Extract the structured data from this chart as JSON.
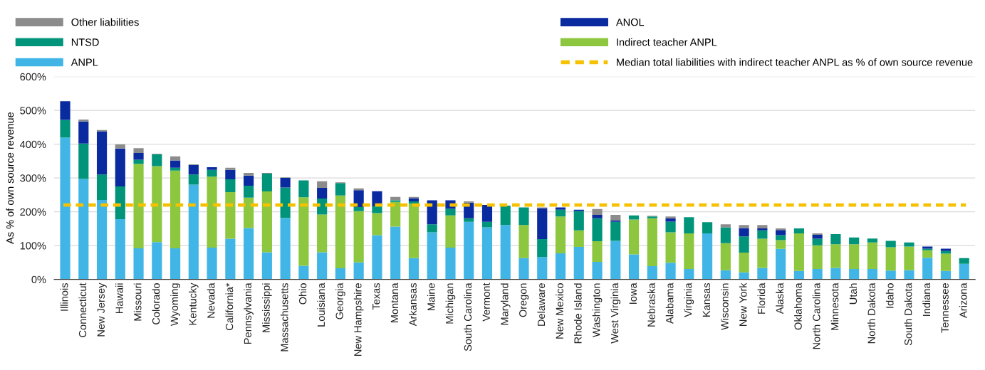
{
  "chart_data": {
    "type": "bar",
    "stacked": true,
    "ylabel": "As % of own source revenue",
    "categories": [
      "Illinois",
      "Connecticut",
      "New Jersey",
      "Hawaii",
      "Missouri",
      "Colorado",
      "Wyoming",
      "Kentucky",
      "Nevada",
      "California*",
      "Pennsylvania",
      "Mississippi",
      "Massachusetts",
      "Ohio",
      "Louisiana",
      "Georgia",
      "New Hampshire",
      "Texas",
      "Montana",
      "Arkansas",
      "Maine",
      "Michigan",
      "South Carolina",
      "Vermont",
      "Maryland",
      "Oregon",
      "Delaware",
      "New Mexico",
      "Rhode Island",
      "Washington",
      "West Virginia",
      "Iowa",
      "Nebraska",
      "Alabama",
      "Virginia",
      "Kansas",
      "Wisconsin",
      "New York",
      "Florida",
      "Alaska",
      "Oklahoma",
      "North Carolina",
      "Minnesota",
      "Utah",
      "North Dakota",
      "Idaho",
      "South Dakota",
      "Indiana",
      "Tennessee",
      "Arizona"
    ],
    "series": [
      {
        "name": "ANPL",
        "color": "#41b6e6",
        "values": [
          420,
          297,
          235,
          178,
          92,
          110,
          92,
          280,
          94,
          120,
          152,
          80,
          182,
          40,
          80,
          33,
          50,
          131,
          156,
          63,
          139,
          94,
          170,
          154,
          161,
          63,
          66,
          77,
          96,
          52,
          114,
          74,
          39,
          49,
          31,
          136,
          27,
          21,
          34,
          90,
          25,
          31,
          34,
          31,
          31,
          26,
          27,
          64,
          25,
          46
        ]
      },
      {
        "name": "Indirect teacher ANPL",
        "color": "#8dc63f",
        "values": [
          0,
          0,
          0,
          0,
          250,
          225,
          230,
          0,
          210,
          138,
          90,
          180,
          0,
          203,
          112,
          215,
          152,
          65,
          73,
          161,
          0,
          95,
          0,
          0,
          0,
          98,
          0,
          109,
          49,
          61,
          0,
          103,
          142,
          90,
          105,
          0,
          80,
          58,
          86,
          26,
          111,
          70,
          70,
          73,
          78,
          69,
          70,
          22,
          51,
          0
        ]
      },
      {
        "name": "NTSD",
        "color": "#00947a",
        "values": [
          52,
          105,
          75,
          97,
          12,
          35,
          8,
          30,
          20,
          38,
          35,
          53,
          90,
          50,
          47,
          37,
          12,
          20,
          5,
          7,
          24,
          20,
          11,
          16,
          57,
          52,
          53,
          20,
          57,
          68,
          56,
          12,
          5,
          32,
          48,
          33,
          47,
          48,
          25,
          15,
          15,
          19,
          30,
          20,
          12,
          19,
          12,
          5,
          8,
          17
        ]
      },
      {
        "name": "ANOL",
        "color": "#0a2aa0",
        "values": [
          55,
          65,
          128,
          112,
          20,
          0,
          22,
          28,
          8,
          28,
          30,
          0,
          28,
          0,
          32,
          0,
          50,
          45,
          0,
          9,
          71,
          25,
          46,
          50,
          0,
          0,
          92,
          7,
          4,
          10,
          4,
          0,
          0,
          10,
          0,
          0,
          0,
          25,
          6,
          15,
          0,
          12,
          0,
          0,
          0,
          0,
          0,
          6,
          7,
          0
        ]
      },
      {
        "name": "Other liabilities",
        "color": "#8c8c8c",
        "values": [
          0,
          6,
          4,
          12,
          14,
          2,
          12,
          2,
          0,
          6,
          8,
          2,
          2,
          0,
          19,
          2,
          5,
          0,
          10,
          4,
          0,
          0,
          4,
          null,
          0,
          null,
          2,
          0,
          0,
          17,
          17,
          0,
          2,
          5,
          0,
          0,
          9,
          9,
          10,
          5,
          0,
          4,
          0,
          0,
          0,
          0,
          0,
          0,
          0,
          0
        ]
      }
    ],
    "ref_lines": [
      {
        "axis": "y",
        "value": 220,
        "label": "Median total liabilities with indirect teacher ANPL as % of own source revenue",
        "color": "#f5c100",
        "line_style": "dashed"
      }
    ],
    "ylim": [
      0,
      600
    ],
    "yticks": [
      {
        "value": 0,
        "label": "0%"
      },
      {
        "value": 100,
        "label": "100%"
      },
      {
        "value": 200,
        "label": "200%"
      },
      {
        "value": 300,
        "label": "300%"
      },
      {
        "value": 400,
        "label": "400%"
      },
      {
        "value": 500,
        "label": "500%"
      },
      {
        "value": 600,
        "label": "600%"
      }
    ],
    "grid": "y",
    "legend": "top"
  }
}
